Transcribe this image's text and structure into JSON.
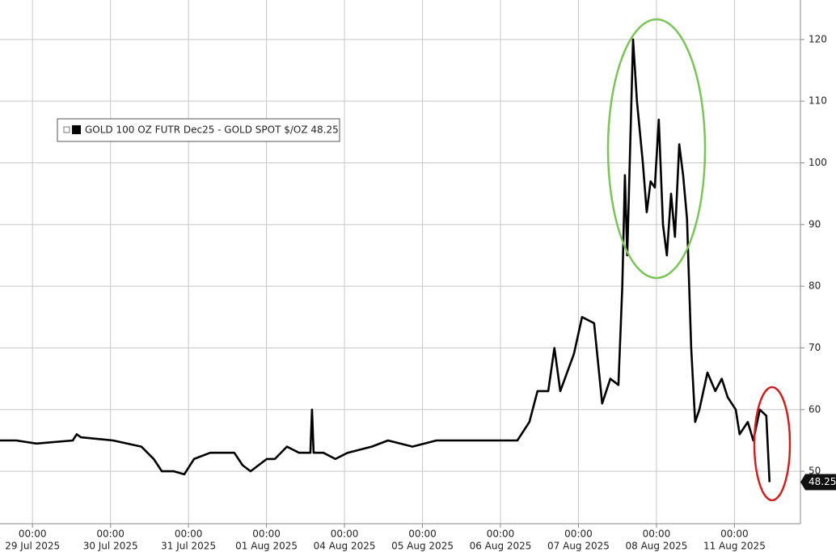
{
  "chart_data": {
    "type": "line",
    "x": [
      0,
      5,
      11.2,
      22.4,
      23.6,
      24.9,
      34.8,
      43.5,
      47.3,
      49.8,
      53.5,
      56.7,
      59.7,
      64.7,
      72.1,
      74.6,
      77.1,
      82.1,
      84.6,
      88.3,
      92,
      95.5,
      96,
      96.5,
      99.5,
      103.2,
      107,
      114.4,
      119.4,
      126.9,
      134.3,
      144.3,
      154.2,
      159.2,
      162.9,
      165.4,
      168.7,
      170.6,
      172.4,
      176.6,
      179.1,
      182.8,
      185.3,
      187.8,
      190.3,
      191.5,
      192.3,
      193,
      194.8,
      196,
      197.8,
      199,
      200.2,
      201.5,
      202.7,
      204,
      205.2,
      206.5,
      207.7,
      209,
      210.2,
      211.4,
      212.7,
      213.9,
      215.2,
      217.7,
      220.1,
      222.1,
      223.9,
      226.4,
      227.6,
      230.1,
      231.8,
      233.8,
      235.8,
      236.8
    ],
    "series": [
      {
        "name": "GOLD 100 OZ FUTR Dec25 - GOLD SPOT $/OZ 48.25",
        "color": "#000000",
        "values": [
          55,
          55,
          54.5,
          55,
          56,
          55.5,
          55,
          54,
          52,
          50,
          50,
          49.5,
          52,
          53,
          53,
          51,
          50,
          52,
          52,
          54,
          53,
          53,
          60,
          53,
          53,
          52,
          53,
          54,
          55,
          54,
          55,
          55,
          55,
          55,
          58,
          63,
          63,
          70,
          63,
          69,
          75,
          74,
          61,
          65,
          64,
          80,
          98,
          85,
          120,
          110,
          100,
          92,
          97,
          96,
          107,
          90,
          85,
          95,
          88,
          103,
          98,
          91,
          70,
          58,
          60,
          66,
          63,
          65,
          62,
          60,
          56,
          58,
          55,
          60,
          59,
          48.25
        ]
      }
    ],
    "xlim": [
      0,
      246.3
    ],
    "ylim": [
      41.5,
      126.4
    ],
    "yticks": [
      50,
      60,
      70,
      80,
      90,
      100,
      110,
      120
    ],
    "xticks": [
      {
        "value": 10,
        "label": "00:00",
        "date": "29 Jul 2025"
      },
      {
        "value": 34,
        "label": "00:00",
        "date": "30 Jul 2025"
      },
      {
        "value": 58,
        "label": "00:00",
        "date": "31 Jul 2025"
      },
      {
        "value": 82,
        "label": "00:00",
        "date": "01 Aug 2025"
      },
      {
        "value": 106,
        "label": "00:00",
        "date": "04 Aug 2025"
      },
      {
        "value": 130,
        "label": "00:00",
        "date": "05 Aug 2025"
      },
      {
        "value": 154,
        "label": "00:00",
        "date": "06 Aug 2025"
      },
      {
        "value": 178,
        "label": "00:00",
        "date": "07 Aug 2025"
      },
      {
        "value": 202,
        "label": "00:00",
        "date": "08 Aug 2025"
      },
      {
        "value": 226,
        "label": "00:00",
        "date": "11 Aug 2025"
      }
    ],
    "grid": true
  }
}
